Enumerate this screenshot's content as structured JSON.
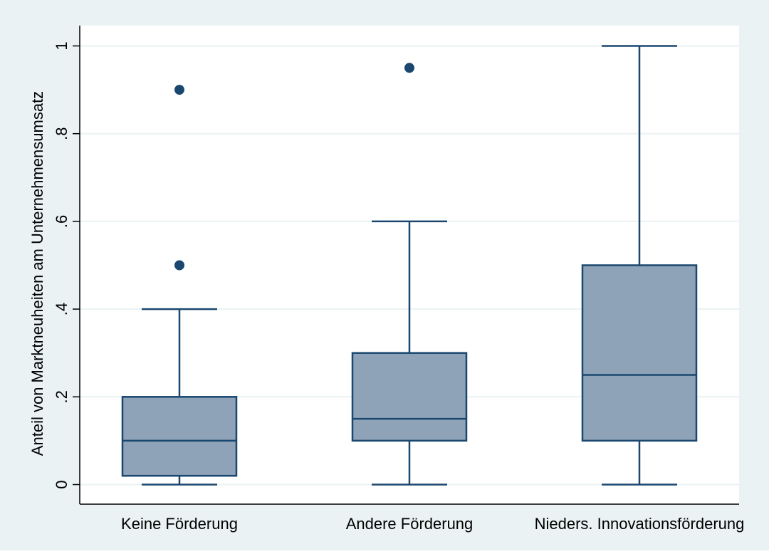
{
  "chart_data": {
    "type": "box",
    "title": "",
    "ylabel": "Anteil von Marktneuheiten am Unternehmensumsatz",
    "xlabel": "",
    "ylim": [
      0,
      1.04
    ],
    "yticks": [
      {
        "value": 0,
        "label": "0"
      },
      {
        "value": 0.2,
        "label": ".2"
      },
      {
        "value": 0.4,
        "label": ".4"
      },
      {
        "value": 0.6,
        "label": ".6"
      },
      {
        "value": 0.8,
        "label": ".8"
      },
      {
        "value": 1.0,
        "label": "1"
      }
    ],
    "grid": true,
    "categories": [
      "Keine Förderung",
      "Andere Förderung",
      "Nieders. Innovationsförderung"
    ],
    "boxes": [
      {
        "whisker_low": 0,
        "q1": 0.02,
        "median": 0.1,
        "q3": 0.2,
        "whisker_high": 0.4,
        "outliers": [
          0.5,
          0.9
        ]
      },
      {
        "whisker_low": 0,
        "q1": 0.1,
        "median": 0.15,
        "q3": 0.3,
        "whisker_high": 0.6,
        "outliers": [
          0.95
        ]
      },
      {
        "whisker_low": 0,
        "q1": 0.1,
        "median": 0.25,
        "q3": 0.5,
        "whisker_high": 1.0,
        "outliers": []
      }
    ],
    "colors": {
      "background": "#eaf2f3",
      "plot_background": "#ffffff",
      "box_fill": "#8fa3b8",
      "box_stroke": "#1a476f",
      "marker": "#1a476f",
      "grid": "#eaf2f3"
    }
  }
}
